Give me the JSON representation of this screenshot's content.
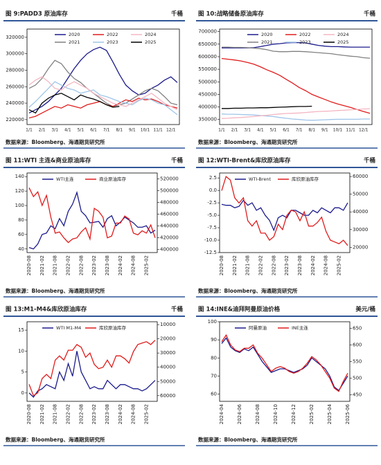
{
  "chart_data": [
    {
      "type": "line",
      "title": "图 9:PADD3 原油库存",
      "unit": "千桶",
      "source": "数据来源：Bloomberg、海通期货研究所",
      "categories": [
        "1/1",
        null,
        "2/1",
        null,
        "3/1",
        null,
        "4/1",
        null,
        "5/1",
        null,
        "6/1",
        null,
        "7/1",
        null,
        "8/1",
        null,
        "9/1",
        null,
        "10/1",
        null,
        "11/1",
        null,
        "12/1",
        null
      ],
      "ylim": [
        214000,
        330000
      ],
      "yticks": [
        220000,
        240000,
        260000,
        280000,
        300000,
        320000
      ],
      "legend": "top",
      "series": [
        {
          "name": "2020",
          "color": "#1a1a8c",
          "values": [
            228000,
            232000,
            236000,
            242000,
            250000,
            258000,
            270000,
            282000,
            292000,
            300000,
            305000,
            308000,
            304000,
            290000,
            275000,
            262000,
            255000,
            250000,
            252000,
            258000,
            262000,
            268000,
            272000,
            265000
          ]
        },
        {
          "name": "2021",
          "color": "#808080",
          "values": [
            258000,
            262000,
            270000,
            282000,
            292000,
            288000,
            278000,
            270000,
            265000,
            258000,
            252000,
            246000,
            240000,
            236000,
            238000,
            240000,
            245000,
            250000,
            255000,
            258000,
            255000,
            248000,
            240000,
            238000
          ]
        },
        {
          "name": "2022",
          "color": "#e01b1b",
          "values": [
            222000,
            224000,
            228000,
            232000,
            236000,
            234000,
            238000,
            236000,
            234000,
            238000,
            240000,
            242000,
            238000,
            236000,
            240000,
            244000,
            242000,
            246000,
            244000,
            245000,
            242000,
            238000,
            236000,
            234000
          ]
        },
        {
          "name": "2023",
          "color": "#9fc5e8",
          "values": [
            235000,
            242000,
            250000,
            258000,
            266000,
            262000,
            258000,
            256000,
            252000,
            254000,
            256000,
            250000,
            248000,
            245000,
            242000,
            240000,
            238000,
            243000,
            246000,
            244000,
            240000,
            238000,
            232000,
            226000
          ]
        },
        {
          "name": "2024",
          "color": "#f4b6c2",
          "values": [
            262000,
            268000,
            272000,
            266000,
            258000,
            256000,
            262000,
            266000,
            262000,
            258000,
            252000,
            248000,
            244000,
            240000,
            238000,
            236000,
            240000,
            244000,
            248000,
            252000,
            246000,
            240000,
            236000,
            232000
          ]
        },
        {
          "name": "2025",
          "color": "#000000",
          "values": [
            232000,
            228000,
            240000,
            246000,
            250000,
            252000,
            248000,
            244000,
            250000,
            247000,
            245000,
            242000,
            238000,
            235000,
            236000,
            null,
            null,
            null,
            null,
            null,
            null,
            null,
            null,
            null
          ]
        }
      ]
    },
    {
      "type": "line",
      "title": "图 10:战略储备原油库存",
      "unit": "千桶",
      "source": "数据来源：Bloomberg、海通期货研究所",
      "categories": [
        "1/1",
        null,
        "2/1",
        null,
        "3/1",
        null,
        "4/1",
        null,
        "5/1",
        null,
        "6/1",
        null,
        "7/1",
        null,
        "8/1",
        null,
        "9/1",
        null,
        "10/1",
        null,
        "11/1",
        null,
        "12/1",
        null
      ],
      "ylim": [
        330000,
        710000
      ],
      "yticks": [
        350000,
        400000,
        450000,
        500000,
        550000,
        600000,
        650000,
        700000
      ],
      "legend": "top",
      "series": [
        {
          "name": "2020",
          "color": "#1a1a8c",
          "values": [
            635000,
            635000,
            635000,
            635000,
            635000,
            636000,
            640000,
            645000,
            650000,
            652000,
            655000,
            656000,
            656000,
            655000,
            650000,
            645000,
            642000,
            640000,
            640000,
            639000,
            638000,
            638000,
            638000,
            638000
          ]
        },
        {
          "name": "2021",
          "color": "#808080",
          "values": [
            638000,
            638000,
            637000,
            637000,
            636000,
            634000,
            632000,
            628000,
            622000,
            620000,
            620000,
            621000,
            621000,
            620000,
            618000,
            616000,
            614000,
            612000,
            608000,
            605000,
            602000,
            600000,
            596000,
            594000
          ]
        },
        {
          "name": "2022",
          "color": "#e01b1b",
          "values": [
            593000,
            590000,
            587000,
            583000,
            577000,
            570000,
            560000,
            548000,
            538000,
            526000,
            510000,
            495000,
            478000,
            465000,
            450000,
            440000,
            430000,
            420000,
            412000,
            405000,
            398000,
            390000,
            382000,
            375000
          ]
        },
        {
          "name": "2023",
          "color": "#9fc5e8",
          "values": [
            372000,
            371000,
            371000,
            370000,
            369000,
            368000,
            366000,
            364000,
            362000,
            358000,
            355000,
            352000,
            350000,
            348000,
            347000,
            348000,
            349000,
            350000,
            351000,
            351000,
            351000,
            351000,
            352000,
            352000
          ]
        },
        {
          "name": "2024",
          "color": "#f4b6c2",
          "values": [
            354000,
            355000,
            357000,
            358000,
            360000,
            362000,
            365000,
            367000,
            370000,
            372000,
            374000,
            375000,
            376000,
            378000,
            380000,
            382000,
            383000,
            384000,
            386000,
            387000,
            389000,
            390000,
            392000,
            393000
          ]
        },
        {
          "name": "2025",
          "color": "#000000",
          "values": [
            394000,
            394000,
            395000,
            395000,
            396000,
            396000,
            397000,
            397000,
            398000,
            399000,
            400000,
            401000,
            402000,
            402000,
            403000,
            null,
            null,
            null,
            null,
            null,
            null,
            null,
            null,
            null
          ]
        }
      ]
    },
    {
      "type": "line",
      "title": "图 11:WTI 主连&商业原油库存",
      "unit": "千桶",
      "source": "数据来源：Bloomberg、海通期货研究所",
      "categories": [
        "2020-08",
        null,
        null,
        "2021-02",
        null,
        null,
        "2021-08",
        null,
        null,
        "2022-02",
        null,
        null,
        "2022-08",
        null,
        null,
        "2023-02",
        null,
        null,
        "2023-08",
        null,
        null,
        "2024-02",
        null,
        null,
        "2024-08",
        null,
        null,
        "2025-02",
        null,
        null
      ],
      "ylim": [
        35,
        145
      ],
      "yticks": [
        40,
        60,
        80,
        100,
        120,
        140
      ],
      "y2lim": [
        395000,
        530000
      ],
      "y2ticks": [
        400000,
        420000,
        440000,
        460000,
        480000,
        500000,
        520000
      ],
      "legend": "top",
      "series": [
        {
          "name": "WTI主连",
          "color": "#1a1a8c",
          "values": [
            42,
            40,
            47,
            60,
            62,
            72,
            68,
            82,
            72,
            92,
            102,
            118,
            92,
            86,
            76,
            77,
            78,
            70,
            82,
            86,
            72,
            77,
            84,
            80,
            76,
            70,
            70,
            72,
            62,
            66
          ]
        },
        {
          "name": "商业原油库存",
          "color": "#e01b1b",
          "axis": "y2",
          "values": [
            505000,
            490000,
            498000,
            475000,
            492000,
            455000,
            428000,
            430000,
            420000,
            412000,
            418000,
            420000,
            430000,
            437000,
            418000,
            470000,
            465000,
            455000,
            420000,
            423000,
            445000,
            445000,
            457000,
            452000,
            428000,
            425000,
            432000,
            428000,
            442000,
            420000
          ]
        }
      ]
    },
    {
      "type": "line",
      "title": "图 12:WTI-Brent&库欣原油库存",
      "unit": "千桶",
      "source": "数据来源：Bloomberg、海通期货研究所",
      "categories": [
        "2020-08",
        null,
        null,
        "2021-02",
        null,
        null,
        "2021-08",
        null,
        null,
        "2022-02",
        null,
        null,
        "2022-08",
        null,
        null,
        "2023-02",
        null,
        null,
        "2023-08",
        null,
        null,
        "2024-02",
        null,
        null,
        "2024-08",
        null,
        null,
        "2025-02",
        null,
        null
      ],
      "ylim": [
        -12.5,
        3.5
      ],
      "yticks": [
        -12.5,
        {
          "value": -10,
          "label": "-10.0"
        },
        -7.5,
        {
          "value": -5,
          "label": "-5.0"
        },
        -2.5,
        {
          "value": 0,
          "label": "0.0"
        },
        2.5
      ],
      "y2lim": [
        17000,
        62000
      ],
      "y2ticks": [
        20000,
        30000,
        40000,
        50000,
        60000
      ],
      "legend": "top",
      "series": [
        {
          "name": "WTI-Brent",
          "color": "#1a1a8c",
          "values": [
            -2.8,
            -3,
            -3,
            -3.5,
            -3.2,
            -2,
            -3,
            -2.5,
            -4,
            -3.5,
            -5,
            -6,
            -8,
            -5.5,
            -5,
            -5.5,
            -4,
            -4,
            -4.5,
            -5,
            -5,
            -4,
            -4.5,
            -3.5,
            -4,
            -4.5,
            -3.5,
            -3.5,
            -4,
            -2.5
          ]
        },
        {
          "name": "库欣原油库存",
          "color": "#e01b1b",
          "axis": "y2",
          "values": [
            52000,
            60000,
            58000,
            48000,
            45000,
            48000,
            35000,
            32000,
            35000,
            28000,
            28000,
            24000,
            26000,
            33000,
            30000,
            38000,
            41000,
            40000,
            35000,
            40000,
            32000,
            32000,
            34000,
            37000,
            29000,
            24000,
            23000,
            22000,
            24000,
            21000
          ]
        }
      ]
    },
    {
      "type": "line",
      "title": "图 13:M1-M4&库欣原油库存",
      "unit": "千桶",
      "source": "数据来源：Bloomberg、海通期货研究所",
      "categories": [
        "2020-08",
        null,
        null,
        "2021-02",
        null,
        null,
        "2021-08",
        null,
        null,
        "2022-02",
        null,
        null,
        "2022-08",
        null,
        null,
        "2023-02",
        null,
        null,
        "2023-08",
        null,
        null,
        "2024-02",
        null,
        null,
        "2024-08",
        null,
        null,
        "2025-02",
        null,
        null
      ],
      "ylim": [
        -2,
        17
      ],
      "yticks": [
        0,
        5,
        10,
        15
      ],
      "y2lim": [
        8000,
        64000
      ],
      "y2_inverted": true,
      "y2ticks": [
        10000,
        20000,
        30000,
        40000,
        50000,
        60000
      ],
      "legend": "top",
      "series": [
        {
          "name": "WTI M1-M4",
          "color": "#1a1a8c",
          "values": [
            0,
            -1,
            0.5,
            1,
            2,
            1.5,
            1,
            5,
            3,
            7,
            4,
            10,
            5,
            3,
            1,
            1.5,
            1,
            1,
            3,
            2,
            1,
            2,
            2,
            1.5,
            1,
            1,
            0.5,
            1,
            2,
            3
          ]
        },
        {
          "name": "库欣原油库存",
          "color": "#e01b1b",
          "axis": "y2",
          "values": [
            52000,
            60000,
            58000,
            48000,
            45000,
            48000,
            35000,
            32000,
            35000,
            28000,
            28000,
            24000,
            26000,
            33000,
            30000,
            38000,
            41000,
            40000,
            35000,
            40000,
            32000,
            32000,
            34000,
            37000,
            29000,
            24000,
            23000,
            22000,
            24000,
            21000
          ]
        }
      ]
    },
    {
      "type": "line",
      "title": "图 14:INE&迪拜阿曼原油价格",
      "unit": "美元/桶",
      "source": "数据来源：Bloomberg、海通期货研究所",
      "categories": [
        "2024-04",
        null,
        null,
        null,
        "2024-06",
        null,
        null,
        null,
        "2024-08",
        null,
        null,
        null,
        "2024-10",
        null,
        null,
        null,
        "2024-12",
        null,
        null,
        null,
        "2025-02",
        null,
        null,
        null,
        "2025-04",
        null,
        null,
        null,
        "2025-06"
      ],
      "ylim": [
        56,
        100
      ],
      "yticks": [
        60,
        70,
        80,
        90,
        100
      ],
      "y2lim": [
        430,
        670
      ],
      "y2ticks": [
        450,
        500,
        550,
        600,
        650
      ],
      "legend": "top",
      "series": [
        {
          "name": "阿曼原油",
          "color": "#1a1a8c",
          "values": [
            88,
            91,
            86,
            84,
            83,
            85,
            84,
            86,
            82,
            78,
            75,
            72,
            73,
            74,
            74,
            73,
            72,
            73,
            74,
            76,
            80,
            78,
            76,
            74,
            70,
            64,
            62,
            66,
            70
          ]
        },
        {
          "name": "INE主连",
          "color": "#e01b1b",
          "axis": "y2",
          "values": [
            610,
            630,
            600,
            585,
            580,
            590,
            590,
            600,
            575,
            560,
            540,
            520,
            530,
            535,
            530,
            520,
            515,
            520,
            530,
            545,
            565,
            555,
            540,
            520,
            500,
            470,
            460,
            490,
            515
          ]
        }
      ]
    }
  ]
}
